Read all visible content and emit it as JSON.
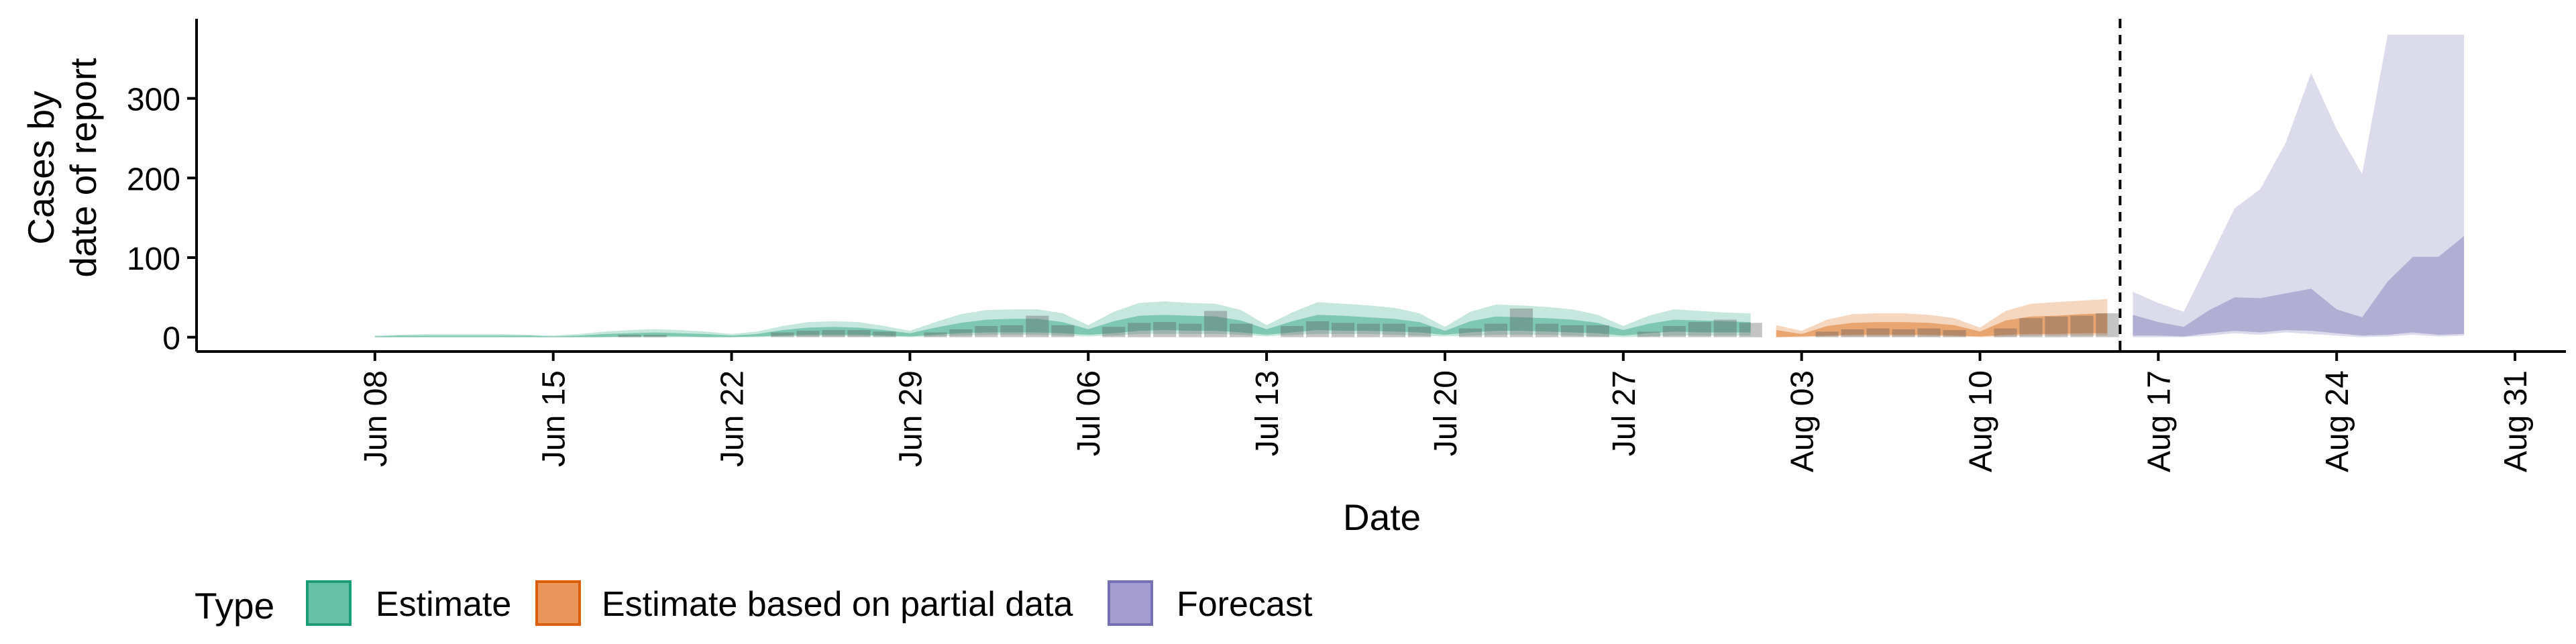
{
  "chart_data": {
    "type": "area",
    "title": "",
    "xlabel": "Date",
    "ylabel_lines": [
      "Cases by",
      "date of report"
    ],
    "x_range": [
      "2020-06-01",
      "2020-09-02"
    ],
    "ylim": [
      -18,
      400
    ],
    "y_ticks": [
      0,
      100,
      200,
      300
    ],
    "x_ticks": [
      {
        "date": "2020-06-08",
        "label": "Jun 08"
      },
      {
        "date": "2020-06-15",
        "label": "Jun 15"
      },
      {
        "date": "2020-06-22",
        "label": "Jun 22"
      },
      {
        "date": "2020-06-29",
        "label": "Jun 29"
      },
      {
        "date": "2020-07-06",
        "label": "Jul 06"
      },
      {
        "date": "2020-07-13",
        "label": "Jul 13"
      },
      {
        "date": "2020-07-20",
        "label": "Jul 20"
      },
      {
        "date": "2020-07-27",
        "label": "Jul 27"
      },
      {
        "date": "2020-08-03",
        "label": "Aug 03"
      },
      {
        "date": "2020-08-10",
        "label": "Aug 10"
      },
      {
        "date": "2020-08-17",
        "label": "Aug 17"
      },
      {
        "date": "2020-08-24",
        "label": "Aug 24"
      },
      {
        "date": "2020-08-31",
        "label": "Aug 31"
      }
    ],
    "forecast_start": "2020-08-15",
    "legend": {
      "title": "Type",
      "position": "bottom",
      "items": [
        {
          "label": "Estimate",
          "fill": "#66c2a5",
          "stroke": "#1b9e77"
        },
        {
          "label": "Estimate based on partial data",
          "fill": "#e8965a",
          "stroke": "#d95f02"
        },
        {
          "label": "Forecast",
          "fill": "#a59cd0",
          "stroke": "#7570b3"
        }
      ]
    },
    "series": [
      {
        "name": "Estimate",
        "color": "#1b9e77",
        "x": [
          "2020-06-08",
          "2020-06-09",
          "2020-06-10",
          "2020-06-11",
          "2020-06-12",
          "2020-06-13",
          "2020-06-14",
          "2020-06-15",
          "2020-06-16",
          "2020-06-17",
          "2020-06-18",
          "2020-06-19",
          "2020-06-20",
          "2020-06-21",
          "2020-06-22",
          "2020-06-23",
          "2020-06-24",
          "2020-06-25",
          "2020-06-26",
          "2020-06-27",
          "2020-06-28",
          "2020-06-29",
          "2020-06-30",
          "2020-07-01",
          "2020-07-02",
          "2020-07-03",
          "2020-07-04",
          "2020-07-05",
          "2020-07-06",
          "2020-07-07",
          "2020-07-08",
          "2020-07-09",
          "2020-07-10",
          "2020-07-11",
          "2020-07-12",
          "2020-07-13",
          "2020-07-14",
          "2020-07-15",
          "2020-07-16",
          "2020-07-17",
          "2020-07-18",
          "2020-07-19",
          "2020-07-20",
          "2020-07-21",
          "2020-07-22",
          "2020-07-23",
          "2020-07-24",
          "2020-07-25",
          "2020-07-26",
          "2020-07-27",
          "2020-07-28",
          "2020-07-29",
          "2020-07-30",
          "2020-07-31",
          "2020-08-01"
        ],
        "lower90": [
          0,
          0,
          0,
          0,
          0,
          0,
          0,
          0,
          0,
          0,
          0,
          0,
          0,
          0,
          0,
          0,
          1,
          1,
          1,
          1,
          1,
          0,
          1,
          2,
          3,
          3,
          3,
          2,
          1,
          2,
          4,
          4,
          4,
          4,
          3,
          1,
          3,
          4,
          4,
          4,
          3,
          2,
          1,
          2,
          3,
          3,
          3,
          2,
          1,
          0,
          1,
          2,
          2,
          2,
          2
        ],
        "upper90": [
          2,
          3,
          4,
          4,
          4,
          4,
          3,
          2,
          4,
          7,
          9,
          10,
          9,
          7,
          4,
          7,
          14,
          19,
          20,
          19,
          14,
          8,
          19,
          29,
          34,
          35,
          35,
          30,
          15,
          32,
          43,
          45,
          43,
          42,
          34,
          15,
          31,
          44,
          42,
          40,
          37,
          30,
          13,
          32,
          41,
          40,
          38,
          35,
          28,
          14,
          27,
          35,
          33,
          31,
          30
        ],
        "lower50": [
          0,
          0,
          0,
          0,
          0,
          0,
          0,
          0,
          0,
          0,
          1,
          1,
          1,
          0,
          0,
          1,
          2,
          3,
          3,
          3,
          2,
          1,
          3,
          5,
          6,
          6,
          6,
          5,
          3,
          5,
          8,
          9,
          8,
          8,
          6,
          3,
          6,
          9,
          8,
          8,
          7,
          6,
          3,
          6,
          8,
          8,
          7,
          6,
          5,
          2,
          5,
          7,
          6,
          6,
          6
        ],
        "upper50": [
          1,
          2,
          2,
          2,
          2,
          2,
          2,
          1,
          2,
          4,
          5,
          6,
          5,
          4,
          2,
          4,
          9,
          12,
          13,
          12,
          9,
          5,
          12,
          18,
          22,
          23,
          23,
          19,
          10,
          20,
          27,
          28,
          27,
          26,
          21,
          10,
          20,
          28,
          27,
          25,
          23,
          19,
          8,
          20,
          26,
          25,
          24,
          22,
          18,
          9,
          17,
          22,
          21,
          20,
          19
        ]
      },
      {
        "name": "Estimate based on partial data",
        "color": "#d95f02",
        "x": [
          "2020-08-02",
          "2020-08-03",
          "2020-08-04",
          "2020-08-05",
          "2020-08-06",
          "2020-08-07",
          "2020-08-08",
          "2020-08-09",
          "2020-08-10",
          "2020-08-11",
          "2020-08-12",
          "2020-08-13",
          "2020-08-14",
          "2020-08-15"
        ],
        "lower90": [
          0,
          0,
          1,
          1,
          1,
          1,
          1,
          1,
          0,
          1,
          2,
          2,
          2,
          2
        ],
        "upper90": [
          15,
          8,
          22,
          29,
          30,
          30,
          28,
          24,
          12,
          33,
          42,
          44,
          46,
          48
        ],
        "lower50": [
          0,
          1,
          2,
          3,
          3,
          3,
          3,
          2,
          1,
          3,
          4,
          4,
          5,
          5
        ],
        "upper50": [
          9,
          4,
          14,
          18,
          19,
          19,
          18,
          15,
          7,
          21,
          26,
          27,
          29,
          30
        ]
      },
      {
        "name": "Forecast",
        "color": "#7570b3",
        "x": [
          "2020-08-16",
          "2020-08-17",
          "2020-08-18",
          "2020-08-19",
          "2020-08-20",
          "2020-08-21",
          "2020-08-22",
          "2020-08-23",
          "2020-08-24",
          "2020-08-25",
          "2020-08-26",
          "2020-08-27",
          "2020-08-28",
          "2020-08-29"
        ],
        "lower90": [
          0,
          0,
          0,
          2,
          5,
          3,
          6,
          4,
          2,
          0,
          1,
          3,
          1,
          2
        ],
        "upper90": [
          57,
          43,
          32,
          97,
          162,
          186,
          244,
          332,
          261,
          205,
          380,
          380,
          380,
          380
        ],
        "lower50": [
          2,
          2,
          1,
          5,
          8,
          6,
          9,
          8,
          5,
          2,
          3,
          6,
          3,
          4
        ],
        "upper50": [
          28,
          19,
          13,
          34,
          50,
          49,
          55,
          61,
          35,
          25,
          70,
          101,
          101,
          127
        ]
      }
    ],
    "reported_cases": {
      "x": [
        "2020-06-18",
        "2020-06-19",
        "2020-06-24",
        "2020-06-25",
        "2020-06-26",
        "2020-06-27",
        "2020-06-28",
        "2020-06-30",
        "2020-07-01",
        "2020-07-02",
        "2020-07-03",
        "2020-07-04",
        "2020-07-05",
        "2020-07-07",
        "2020-07-08",
        "2020-07-09",
        "2020-07-10",
        "2020-07-11",
        "2020-07-12",
        "2020-07-14",
        "2020-07-15",
        "2020-07-16",
        "2020-07-17",
        "2020-07-18",
        "2020-07-19",
        "2020-07-21",
        "2020-07-22",
        "2020-07-23",
        "2020-07-24",
        "2020-07-25",
        "2020-07-26",
        "2020-07-28",
        "2020-07-29",
        "2020-07-30",
        "2020-07-31",
        "2020-08-01",
        "2020-08-04",
        "2020-08-05",
        "2020-08-06",
        "2020-08-07",
        "2020-08-08",
        "2020-08-09",
        "2020-08-11",
        "2020-08-12",
        "2020-08-13",
        "2020-08-14",
        "2020-08-15"
      ],
      "values": [
        3,
        3,
        6,
        8,
        9,
        9,
        7,
        6,
        10,
        14,
        15,
        27,
        15,
        13,
        18,
        19,
        17,
        33,
        17,
        14,
        20,
        18,
        17,
        17,
        13,
        11,
        17,
        36,
        17,
        15,
        15,
        7,
        14,
        19,
        22,
        18,
        7,
        10,
        11,
        10,
        11,
        9,
        11,
        24,
        26,
        27,
        30
      ]
    }
  }
}
